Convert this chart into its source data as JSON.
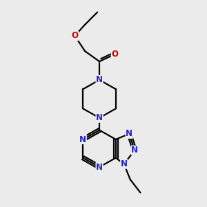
{
  "bg_color": "#ebebeb",
  "bond_color": "#000000",
  "N_color": "#2222cc",
  "O_color": "#cc0000",
  "line_width": 1.6,
  "font_size": 8.5,
  "fig_width": 3.0,
  "fig_height": 3.0,
  "xlim": [
    0,
    10
  ],
  "ylim": [
    0,
    10
  ]
}
